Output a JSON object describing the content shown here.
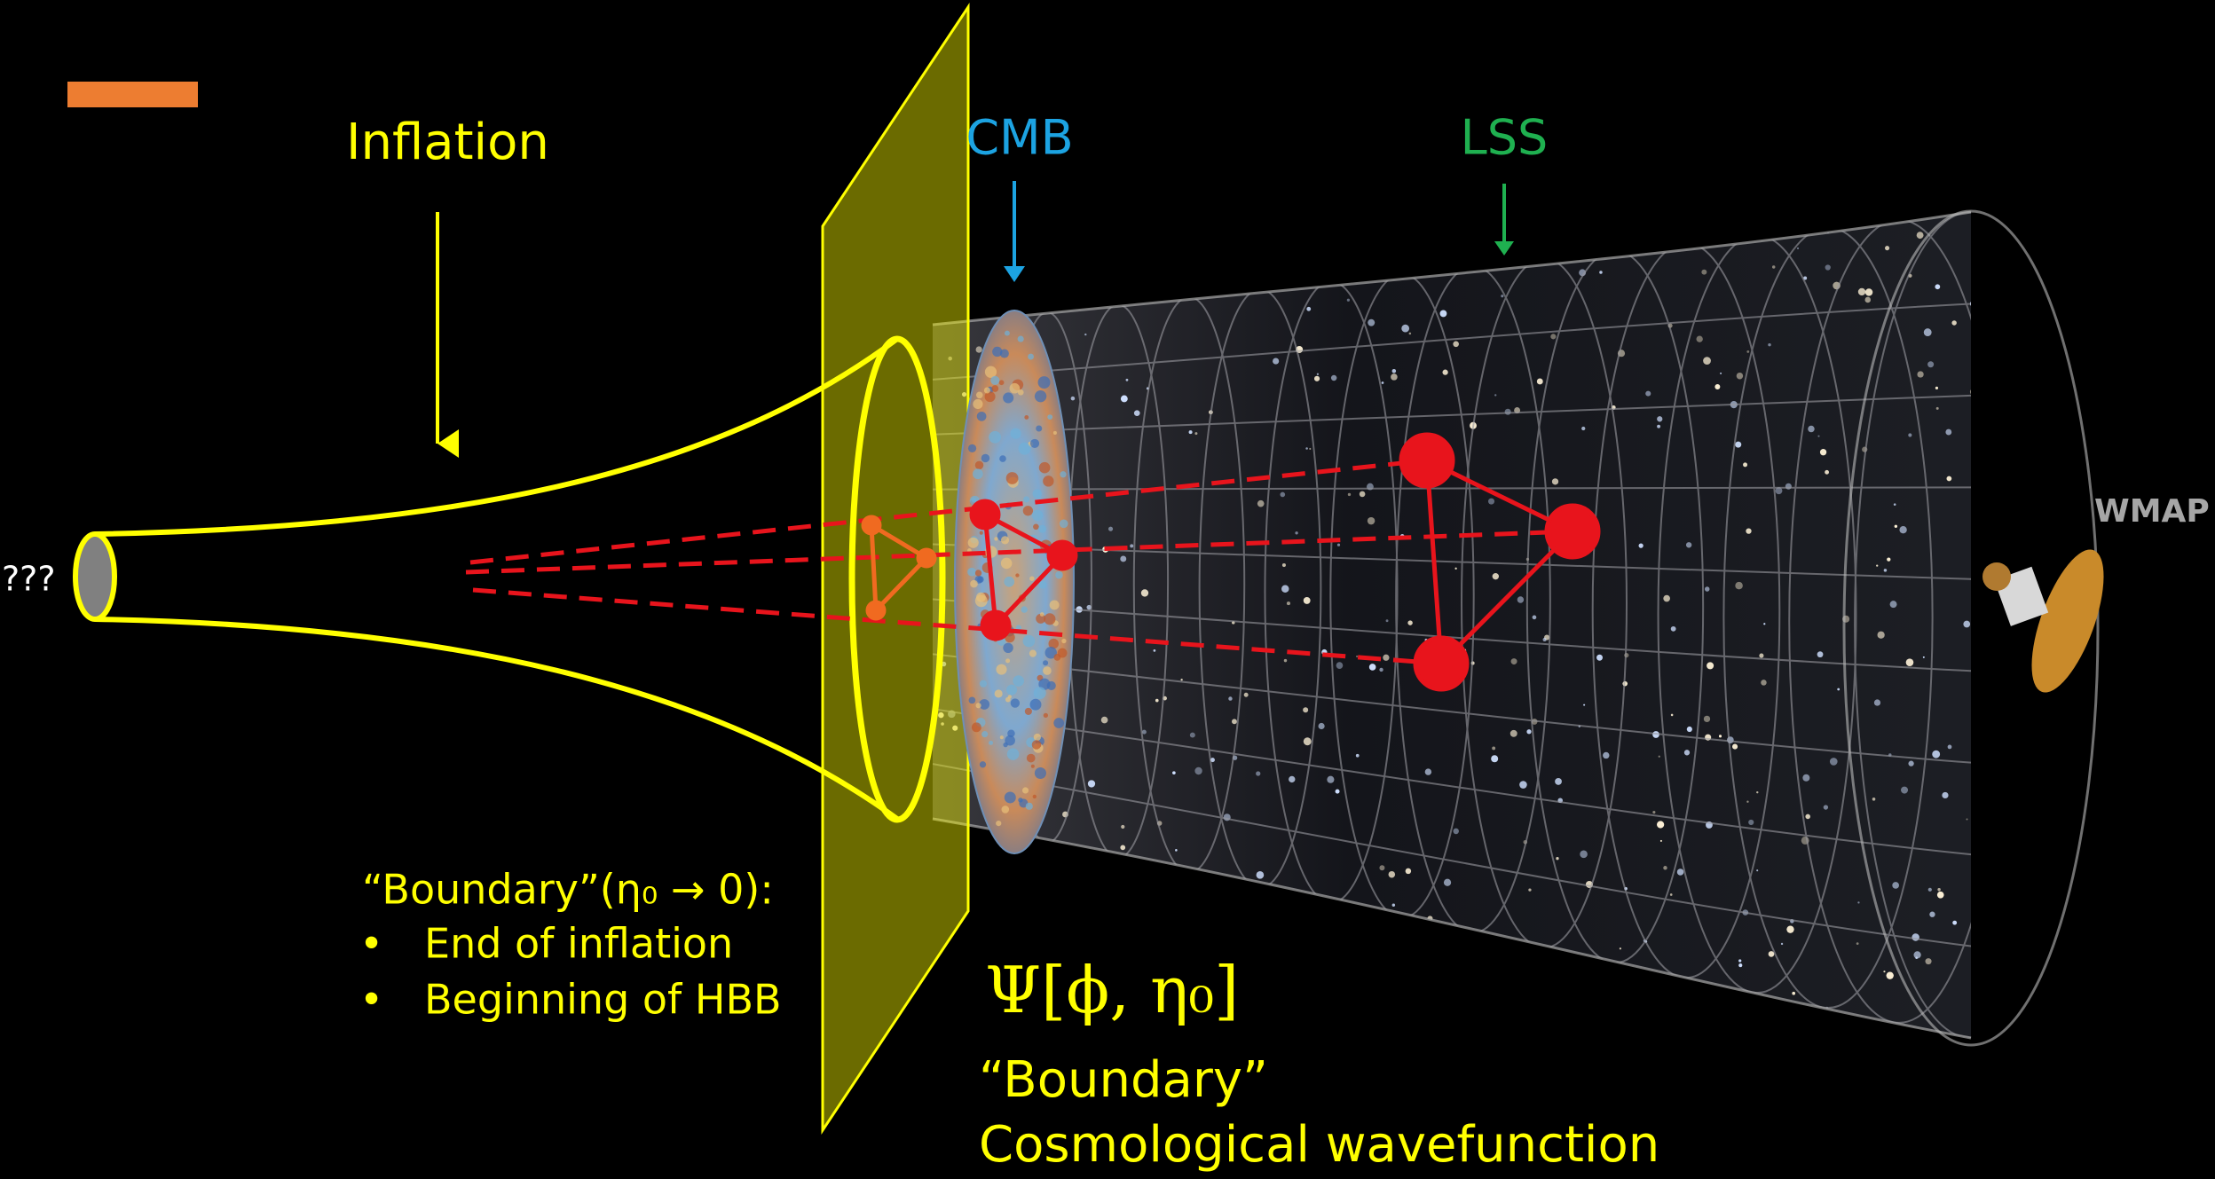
{
  "labels": {
    "inflation": "Inflation",
    "cmb": "CMB",
    "lss": "LSS",
    "unknown": "???",
    "wmap": "WMAP"
  },
  "boundary_note": {
    "title": "“Boundary”(η₀ → 0):",
    "bullets": [
      "End of inflation",
      "Beginning of HBB"
    ]
  },
  "wavefunction": {
    "symbol": "Ψ[ϕ, η₀]",
    "line1": "“Boundary”",
    "line2": "Cosmological wavefunction"
  }
}
